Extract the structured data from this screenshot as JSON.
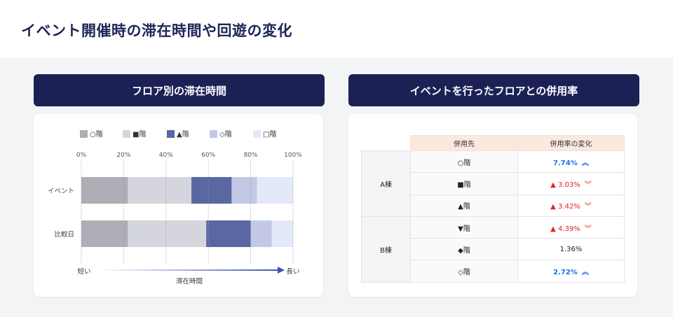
{
  "title": "イベント開催時の滞在時間や回遊の変化",
  "left_panel": {
    "header": "フロア別の滞在時間"
  },
  "right_panel": {
    "header": "イベントを行ったフロアとの併用率"
  },
  "chart_data": {
    "type": "bar",
    "orientation": "horizontal",
    "stacked": true,
    "categories": [
      "イベント",
      "比較日"
    ],
    "series": [
      {
        "name": "○階",
        "color": "#aeaeb6",
        "values": [
          22,
          22
        ]
      },
      {
        "name": "■階",
        "color": "#d5d6dd",
        "values": [
          30,
          37
        ]
      },
      {
        "name": "▲階",
        "color": "#5a67a3",
        "values": [
          19,
          21
        ]
      },
      {
        "name": "◇階",
        "color": "#c3c9e4",
        "values": [
          12,
          10
        ]
      },
      {
        "name": "□階",
        "color": "#e3e9f8",
        "values": [
          17,
          10
        ]
      }
    ],
    "xticks": [
      "0%",
      "20%",
      "40%",
      "60%",
      "80%",
      "100%"
    ],
    "xlim": [
      0,
      100
    ],
    "xlabel": "滞在時間",
    "x_low": "短い",
    "x_high": "長い",
    "legend": "top",
    "grid": true
  },
  "table": {
    "headers": [
      "併用先",
      "併用率の変化"
    ],
    "groups": [
      {
        "name": "A棟",
        "rows": [
          {
            "floor": "○階",
            "change": "7.74%",
            "trend": "up"
          },
          {
            "floor": "■階",
            "change": "▲ 3.03%",
            "trend": "down"
          },
          {
            "floor": "▲階",
            "change": "▲ 3.42%",
            "trend": "down"
          }
        ]
      },
      {
        "name": "B棟",
        "rows": [
          {
            "floor": "▼階",
            "change": "▲ 4.39%",
            "trend": "down"
          },
          {
            "floor": "◆階",
            "change": "1.36%",
            "trend": "flat"
          },
          {
            "floor": "◇階",
            "change": "2.72%",
            "trend": "up"
          }
        ]
      }
    ]
  },
  "colors": {
    "navy": "#1c2155",
    "up": "#1a73e8",
    "down": "#e02424"
  }
}
